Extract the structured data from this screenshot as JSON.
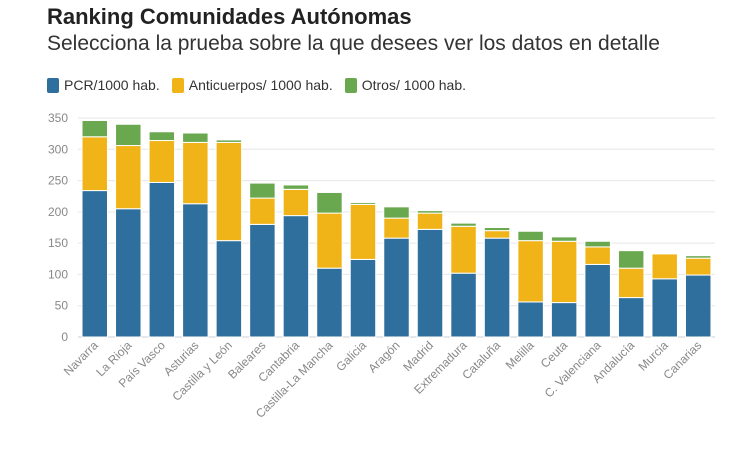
{
  "chart_data": {
    "type": "bar",
    "stacked": true,
    "title": "Ranking Comunidades Autónomas",
    "subtitle": "Selecciona la prueba sobre la que desees ver los datos en detalle",
    "legend_position": "top-left",
    "grid": true,
    "ylim": [
      0,
      350
    ],
    "yticks": [
      0,
      50,
      100,
      150,
      200,
      250,
      300,
      350
    ],
    "categories": [
      "Navarra",
      "La Rioja",
      "País Vasco",
      "Asturias",
      "Castilla y León",
      "Baleares",
      "Cantabria",
      "Castilla-La Mancha",
      "Galicia",
      "Aragón",
      "Madrid",
      "Extremadura",
      "Cataluña",
      "Melilla",
      "Ceuta",
      "C. Valenciana",
      "Andalucía",
      "Murcia",
      "Canarias"
    ],
    "series": [
      {
        "name": "PCR/1000 hab.",
        "color": "#2e6f9e",
        "values": [
          234,
          205,
          247,
          213,
          154,
          180,
          194,
          110,
          124,
          158,
          172,
          102,
          158,
          56,
          55,
          116,
          63,
          93,
          99
        ]
      },
      {
        "name": "Anticuerpos/ 1000 hab.",
        "color": "#f0b419",
        "values": [
          86,
          101,
          67,
          98,
          157,
          42,
          42,
          88,
          88,
          32,
          26,
          75,
          12,
          98,
          98,
          28,
          47,
          40,
          27
        ]
      },
      {
        "name": "Otros/ 1000 hab.",
        "color": "#6aa84f",
        "values": [
          26,
          34,
          14,
          15,
          4,
          24,
          7,
          33,
          3,
          18,
          4,
          5,
          5,
          15,
          7,
          9,
          28,
          1,
          4
        ]
      }
    ]
  }
}
